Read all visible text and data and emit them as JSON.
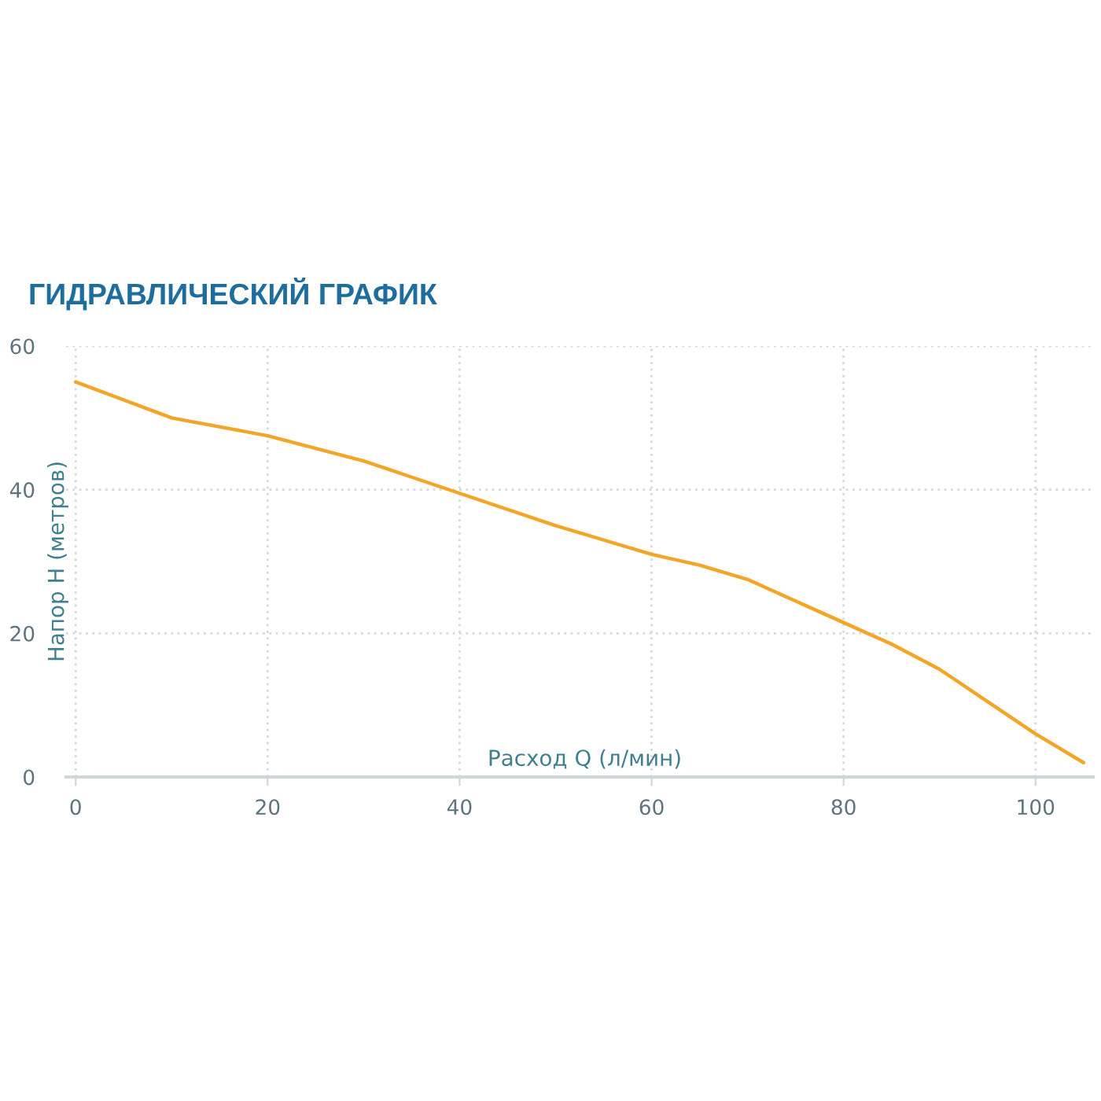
{
  "chart_data": {
    "type": "line",
    "title": "ГИДРАВЛИЧЕСКИЙ ГРАФИК",
    "xlabel": "Расход Q (л/мин)",
    "ylabel": "Напор H (метров)",
    "x": [
      0,
      10,
      20,
      30,
      40,
      50,
      60,
      65,
      70,
      75,
      80,
      85,
      90,
      95,
      100,
      105
    ],
    "series": [
      {
        "color": "#f2a526",
        "values": [
          55,
          50,
          47.5,
          44,
          39.5,
          35,
          31,
          29.5,
          27.5,
          24.5,
          21.5,
          18.5,
          15,
          10.5,
          6,
          2
        ]
      }
    ],
    "xlim": [
      -1,
      106
    ],
    "ylim": [
      0,
      60
    ],
    "xticks": [
      0,
      20,
      40,
      60,
      80,
      100
    ],
    "yticks": [
      0,
      20,
      40,
      60
    ],
    "grid": true,
    "line_style": "solid"
  }
}
